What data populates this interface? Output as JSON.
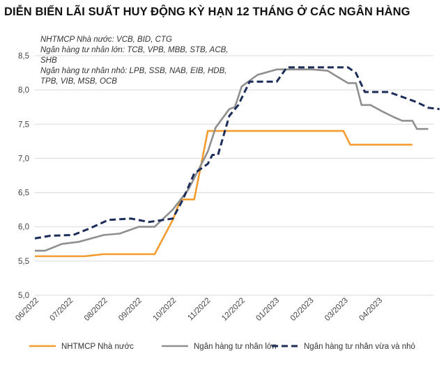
{
  "chart_data": {
    "type": "line",
    "title": "DIỄN BIẾN LÃI SUẤT HUY ĐỘNG KỲ HẠN 12 THÁNG Ở CÁC NGÂN HÀNG",
    "xlabel": "",
    "ylabel": "",
    "ylim": [
      5.0,
      8.5
    ],
    "y_ticks": [
      "5,0",
      "5,5",
      "6,0",
      "6,5",
      "7,0",
      "7,5",
      "8,0",
      "8,5"
    ],
    "categories": [
      "06/2022",
      "07/2022",
      "08/2022",
      "09/2022",
      "10/2022",
      "11/2022",
      "12/2022",
      "01/2023",
      "02/2023",
      "03/2023",
      "04/2023"
    ],
    "x_start": "2022-06-01",
    "x_end": "2023-05-01",
    "grid": true,
    "legend_position": "bottom",
    "notes": [
      "NHTMCP Nhà nước: VCB, BID, CTG",
      "Ngân hàng tư nhân lớn: TCB, VPB, MBB, STB, ACB,",
      "SHB",
      "Ngân hàng tư nhân nhỏ: LPB, SSB, NAB, EIB, HDB,",
      "TPB, VIB, MSB, OCB"
    ],
    "series": [
      {
        "name": "NHTMCP Nhà nước",
        "color": "#f39c2d",
        "style": "solid",
        "points": [
          [
            "2022-06-01",
            5.57
          ],
          [
            "2022-07-15",
            5.57
          ],
          [
            "2022-08-01",
            5.6
          ],
          [
            "2022-09-15",
            5.6
          ],
          [
            "2022-10-01",
            6.1
          ],
          [
            "2022-10-08",
            6.4
          ],
          [
            "2022-10-20",
            6.4
          ],
          [
            "2022-11-01",
            7.4
          ],
          [
            "2023-03-01",
            7.4
          ],
          [
            "2023-03-07",
            7.2
          ],
          [
            "2023-05-01",
            7.2
          ]
        ]
      },
      {
        "name": "Ngân hàng tư nhân lớn",
        "color": "#8f8f8f",
        "style": "solid",
        "points": [
          [
            "2022-06-01",
            5.65
          ],
          [
            "2022-06-10",
            5.65
          ],
          [
            "2022-06-25",
            5.75
          ],
          [
            "2022-07-10",
            5.78
          ],
          [
            "2022-08-01",
            5.88
          ],
          [
            "2022-08-15",
            5.9
          ],
          [
            "2022-09-01",
            6.0
          ],
          [
            "2022-09-15",
            6.0
          ],
          [
            "2022-10-01",
            6.25
          ],
          [
            "2022-10-15",
            6.55
          ],
          [
            "2022-11-01",
            7.1
          ],
          [
            "2022-11-08",
            7.45
          ],
          [
            "2022-11-20",
            7.72
          ],
          [
            "2022-11-25",
            7.75
          ],
          [
            "2022-12-01",
            8.05
          ],
          [
            "2022-12-15",
            8.22
          ],
          [
            "2023-01-01",
            8.3
          ],
          [
            "2023-02-01",
            8.3
          ],
          [
            "2023-02-15",
            8.28
          ],
          [
            "2023-02-25",
            8.18
          ],
          [
            "2023-03-05",
            8.1
          ],
          [
            "2023-03-12",
            8.1
          ],
          [
            "2023-03-17",
            7.78
          ],
          [
            "2023-03-25",
            7.78
          ],
          [
            "2023-04-05",
            7.68
          ],
          [
            "2023-04-15",
            7.6
          ],
          [
            "2023-04-22",
            7.55
          ],
          [
            "2023-05-01",
            7.55
          ],
          [
            "2023-05-05",
            7.43
          ],
          [
            "2023-05-15",
            7.43
          ]
        ]
      },
      {
        "name": "Ngân hàng tư nhân vừa và nhỏ",
        "color": "#1c2d5a",
        "style": "dashed",
        "points": [
          [
            "2022-06-01",
            5.83
          ],
          [
            "2022-06-15",
            5.87
          ],
          [
            "2022-07-05",
            5.88
          ],
          [
            "2022-07-20",
            5.98
          ],
          [
            "2022-08-05",
            6.1
          ],
          [
            "2022-08-25",
            6.12
          ],
          [
            "2022-09-10",
            6.07
          ],
          [
            "2022-10-01",
            6.12
          ],
          [
            "2022-10-10",
            6.4
          ],
          [
            "2022-10-20",
            6.78
          ],
          [
            "2022-11-01",
            6.92
          ],
          [
            "2022-11-05",
            7.05
          ],
          [
            "2022-11-10",
            7.05
          ],
          [
            "2022-11-20",
            7.62
          ],
          [
            "2022-11-28",
            7.78
          ],
          [
            "2022-12-08",
            8.12
          ],
          [
            "2023-01-01",
            8.12
          ],
          [
            "2023-01-10",
            8.33
          ],
          [
            "2023-03-05",
            8.33
          ],
          [
            "2023-03-12",
            8.25
          ],
          [
            "2023-03-20",
            7.97
          ],
          [
            "2023-04-10",
            7.97
          ],
          [
            "2023-04-25",
            7.88
          ],
          [
            "2023-05-05",
            7.82
          ],
          [
            "2023-05-15",
            7.74
          ],
          [
            "2023-05-25",
            7.72
          ]
        ]
      }
    ]
  }
}
